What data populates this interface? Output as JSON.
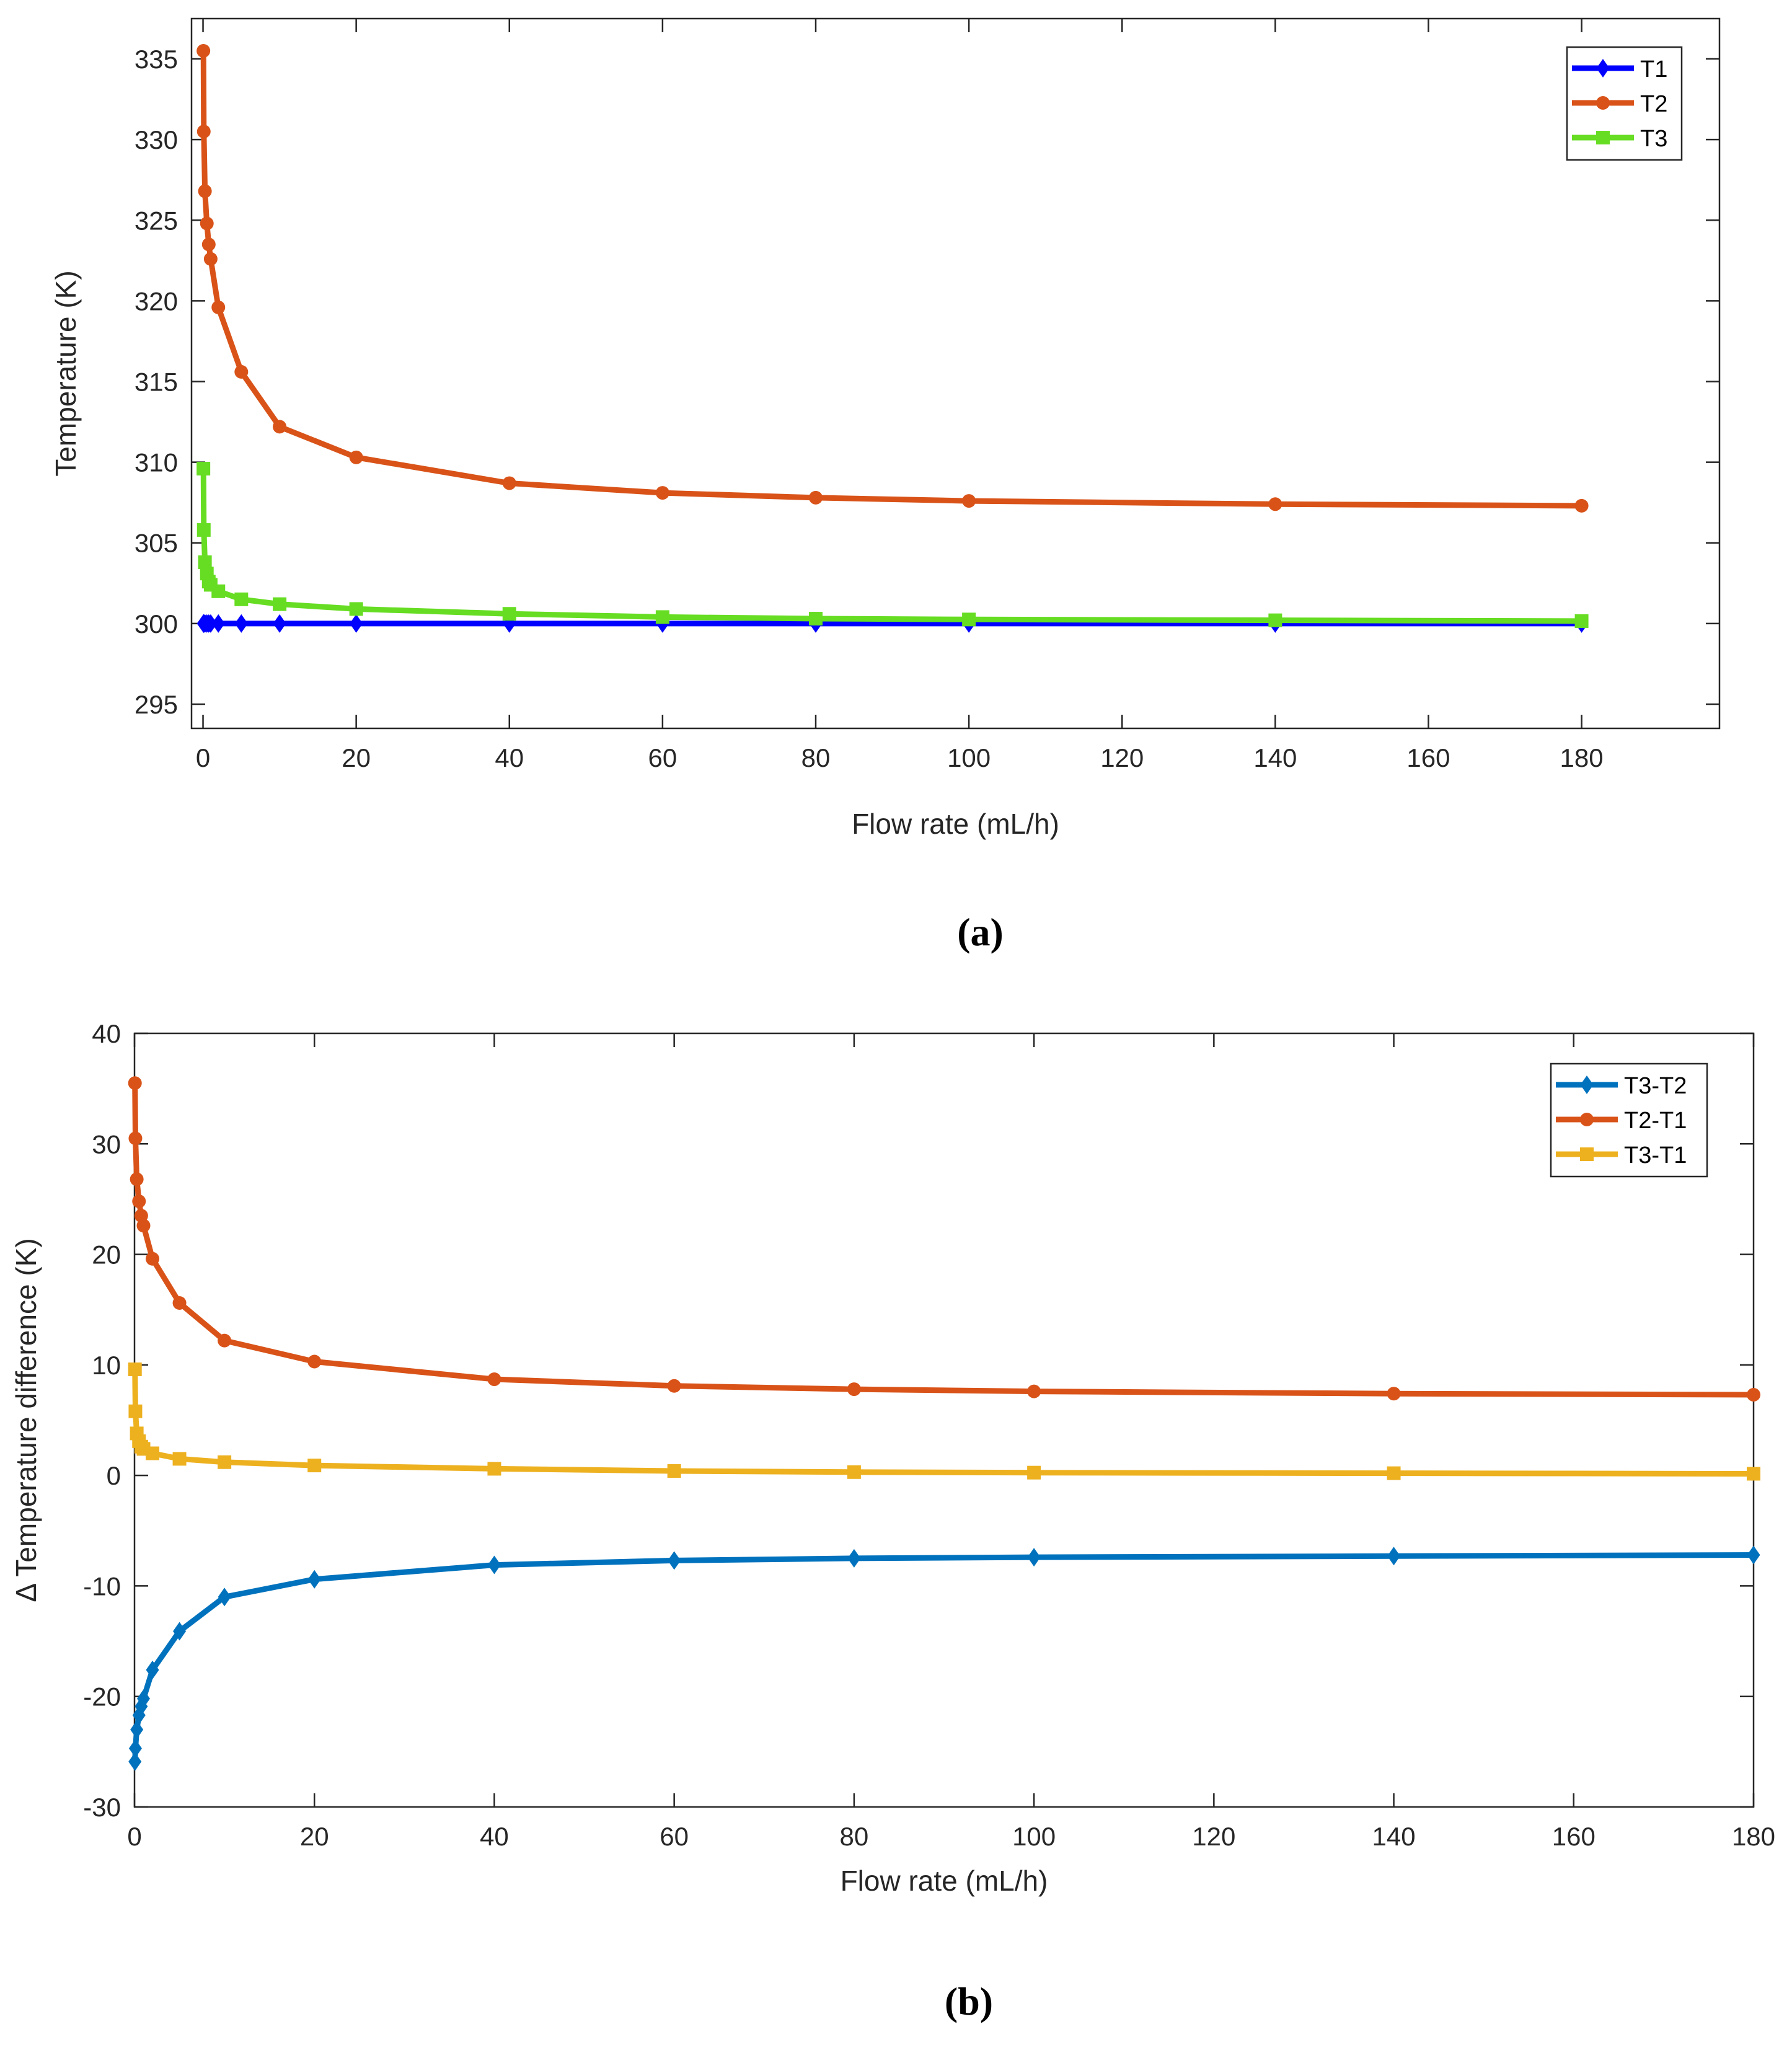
{
  "chart_data": [
    {
      "id": "a",
      "type": "line",
      "panel_label": "(a)",
      "title": "",
      "xlabel": "Flow rate (mL/h)",
      "ylabel": "Temperature (K)",
      "xlim": [
        -1.5,
        198
      ],
      "ylim": [
        293.5,
        337.5
      ],
      "xticks": [
        0,
        20,
        40,
        60,
        80,
        100,
        120,
        140,
        160,
        180
      ],
      "yticks": [
        295,
        300,
        305,
        310,
        315,
        320,
        325,
        330,
        335
      ],
      "grid": false,
      "legend_position": "top-right",
      "x": [
        0.05,
        0.1,
        0.25,
        0.5,
        0.75,
        1,
        2,
        5,
        10,
        20,
        40,
        60,
        80,
        100,
        140,
        180
      ],
      "series": [
        {
          "name": "T1",
          "color": "#0000ff",
          "marker": "diamond",
          "values": [
            300,
            300,
            300,
            300,
            300,
            300,
            300,
            300,
            300,
            300,
            300,
            300,
            300,
            300,
            300,
            300
          ]
        },
        {
          "name": "T2",
          "color": "#d95319",
          "marker": "circle",
          "values": [
            335.5,
            330.5,
            326.8,
            324.8,
            323.5,
            322.6,
            319.6,
            315.6,
            312.2,
            310.3,
            308.7,
            308.1,
            307.8,
            307.6,
            307.4,
            307.3
          ]
        },
        {
          "name": "T3",
          "color": "#66dd22",
          "marker": "square",
          "values": [
            309.6,
            305.8,
            303.8,
            303.1,
            302.6,
            302.4,
            302.0,
            301.5,
            301.2,
            300.9,
            300.6,
            300.4,
            300.3,
            300.25,
            300.2,
            300.15
          ]
        }
      ]
    },
    {
      "id": "b",
      "type": "line",
      "panel_label": "(b)",
      "title": "",
      "xlabel": "Flow rate (mL/h)",
      "ylabel": "Δ Temperature difference (K)",
      "xlim": [
        0,
        180
      ],
      "ylim": [
        -30,
        40
      ],
      "xticks": [
        0,
        20,
        40,
        60,
        80,
        100,
        120,
        140,
        160,
        180
      ],
      "yticks": [
        -30,
        -20,
        -10,
        0,
        10,
        20,
        30,
        40
      ],
      "grid": false,
      "legend_position": "top-right",
      "x": [
        0.05,
        0.1,
        0.25,
        0.5,
        0.75,
        1,
        2,
        5,
        10,
        20,
        40,
        60,
        80,
        100,
        140,
        180
      ],
      "series": [
        {
          "name": "T3-T2",
          "color": "#0072bd",
          "marker": "diamond",
          "values": [
            -25.9,
            -24.7,
            -23.0,
            -21.7,
            -20.9,
            -20.2,
            -17.6,
            -14.1,
            -11.0,
            -9.4,
            -8.1,
            -7.7,
            -7.5,
            -7.4,
            -7.3,
            -7.2
          ]
        },
        {
          "name": "T2-T1",
          "color": "#d95319",
          "marker": "circle",
          "values": [
            35.5,
            30.5,
            26.8,
            24.8,
            23.5,
            22.6,
            19.6,
            15.6,
            12.2,
            10.3,
            8.7,
            8.1,
            7.8,
            7.6,
            7.4,
            7.3
          ]
        },
        {
          "name": "T3-T1",
          "color": "#edb120",
          "marker": "square",
          "values": [
            9.6,
            5.8,
            3.8,
            3.1,
            2.6,
            2.4,
            2.0,
            1.5,
            1.2,
            0.9,
            0.6,
            0.4,
            0.3,
            0.25,
            0.2,
            0.15
          ]
        }
      ]
    }
  ]
}
